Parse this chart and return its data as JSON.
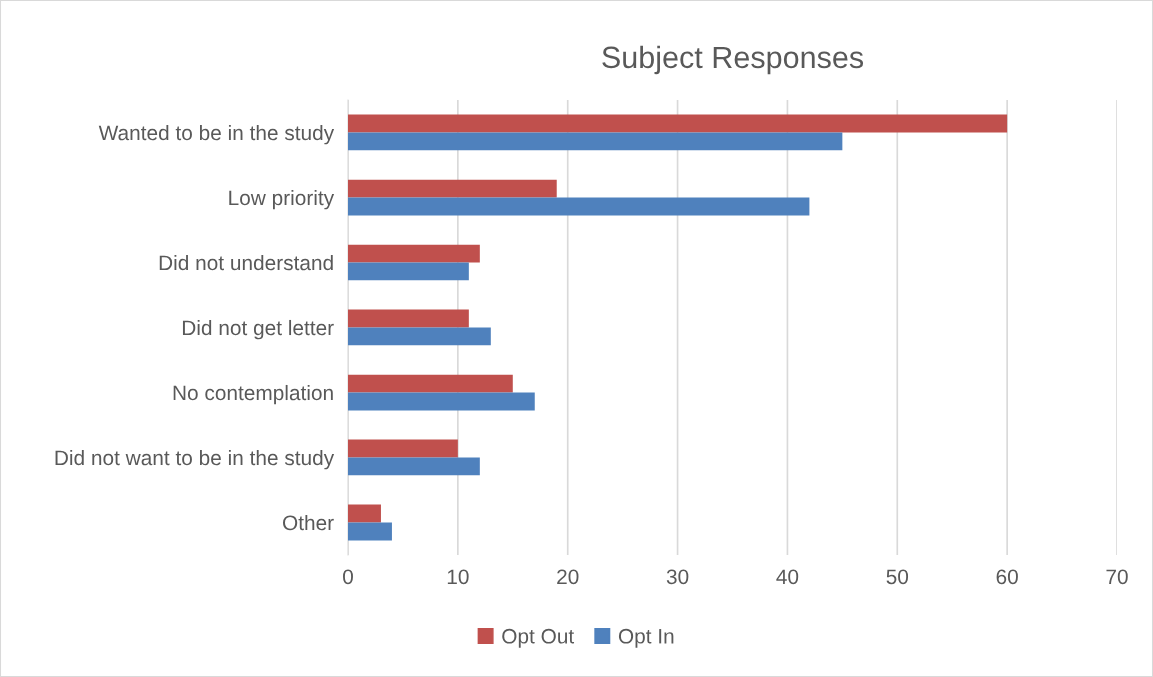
{
  "chart_data": {
    "type": "bar",
    "orientation": "horizontal",
    "title": "Subject Responses",
    "categories": [
      "Wanted to be in the study",
      "Low priority",
      "Did not understand",
      "Did not get letter",
      "No contemplation",
      "Did not want to be in the study",
      "Other"
    ],
    "series": [
      {
        "name": "Opt Out",
        "color": "#c0504d",
        "values": [
          60,
          19,
          12,
          11,
          15,
          10,
          3
        ]
      },
      {
        "name": "Opt In",
        "color": "#4f81bd",
        "values": [
          45,
          42,
          11,
          13,
          17,
          12,
          4
        ]
      }
    ],
    "xlim": [
      0,
      70
    ],
    "xticks": [
      0,
      10,
      20,
      30,
      40,
      50,
      60,
      70
    ],
    "grid": "x",
    "legend": "bottom"
  }
}
